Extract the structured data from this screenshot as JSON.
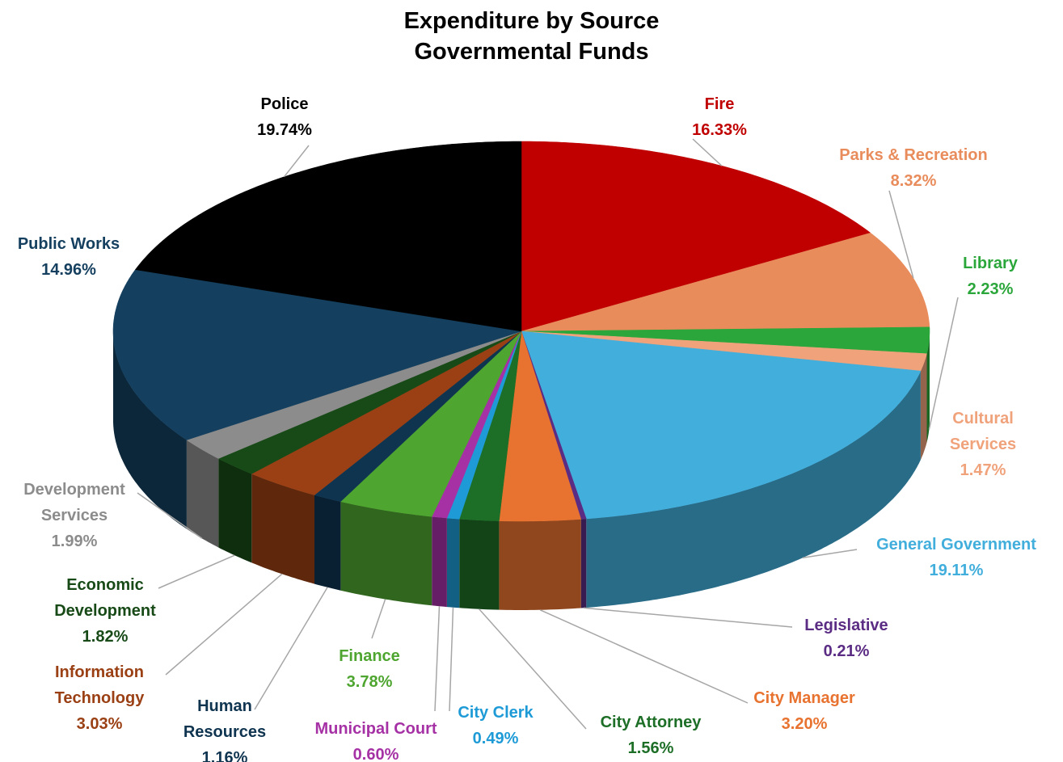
{
  "chart_data": {
    "type": "pie",
    "title": "Expenditure by Source",
    "subtitle": "Governmental Funds",
    "categories": [
      "Fire",
      "Parks & Recreation",
      "Library",
      "Cultural Services",
      "General Government",
      "Legislative",
      "City Manager",
      "City Attorney",
      "City Clerk",
      "Municipal Court",
      "Finance",
      "Human Resources",
      "Information Technology",
      "Economic Development",
      "Development Services",
      "Public Works",
      "Police"
    ],
    "values": [
      16.33,
      8.32,
      2.23,
      1.47,
      19.11,
      0.21,
      3.2,
      1.56,
      0.49,
      0.6,
      3.78,
      1.16,
      3.03,
      1.82,
      1.99,
      14.96,
      19.74
    ],
    "value_labels": [
      "16.33%",
      "8.32%",
      "2.23%",
      "1.47%",
      "19.11%",
      "0.21%",
      "3.20%",
      "1.56%",
      "0.49%",
      "0.60%",
      "3.78%",
      "1.16%",
      "3.03%",
      "1.82%",
      "1.99%",
      "14.96%",
      "19.74%"
    ],
    "colors": [
      "#c00000",
      "#e98c5c",
      "#2aa63a",
      "#f0a27b",
      "#42aedc",
      "#5b2c83",
      "#e8722f",
      "#1d6e26",
      "#1e9bd7",
      "#a531a5",
      "#4ea52f",
      "#0f3450",
      "#9a4014",
      "#174a17",
      "#8c8c8c",
      "#143f5e",
      "#000000"
    ]
  }
}
